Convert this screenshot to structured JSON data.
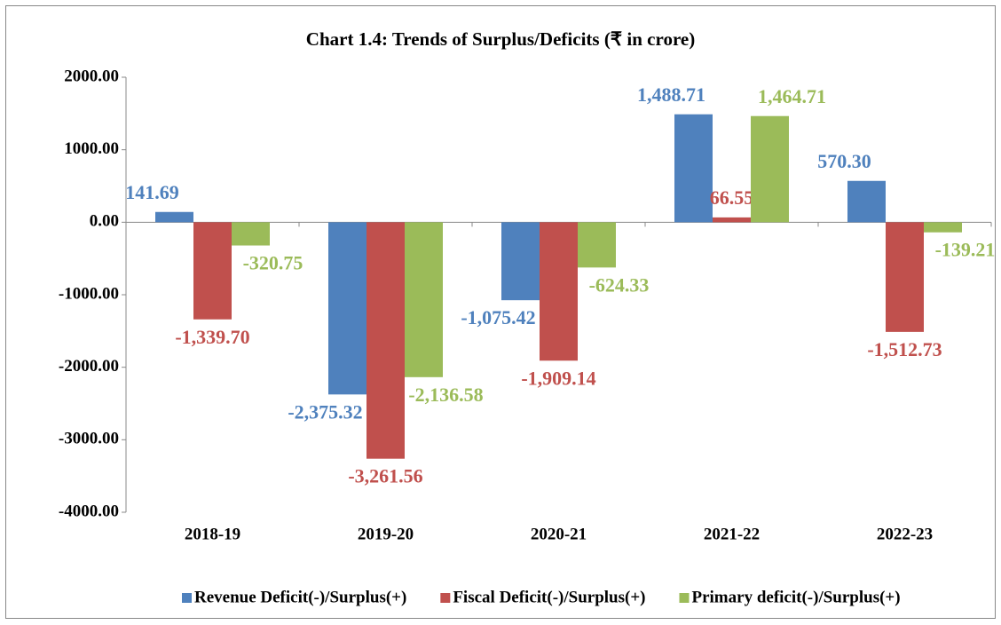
{
  "chart_data": {
    "type": "bar",
    "title": "Chart 1.4: Trends of Surplus/Deficits (₹ in crore)",
    "categories": [
      "2018-19",
      "2019-20",
      "2020-21",
      "2021-22",
      "2022-23"
    ],
    "series": [
      {
        "name": "Revenue Deficit(-)/Surplus(+)",
        "color": "#4f81bd",
        "values": [
          141.69,
          -2375.32,
          -1075.42,
          1488.71,
          570.3
        ],
        "value_labels": [
          "141.69",
          "-2,375.32",
          "-1,075.42",
          "1,488.71",
          "570.30"
        ]
      },
      {
        "name": "Fiscal Deficit(-)/Surplus(+)",
        "color": "#c0504d",
        "values": [
          -1339.7,
          -3261.56,
          -1909.14,
          66.55,
          -1512.73
        ],
        "value_labels": [
          "-1,339.70",
          "-3,261.56",
          "-1,909.14",
          "66.55",
          "-1,512.73"
        ]
      },
      {
        "name": "Primary deficit(-)/Surplus(+)",
        "color": "#9bbb59",
        "values": [
          -320.75,
          -2136.58,
          -624.33,
          1464.71,
          -139.21
        ],
        "value_labels": [
          "-320.75",
          "-2,136.58",
          "-624.33",
          "1,464.71",
          "-139.21"
        ]
      }
    ],
    "ylim": [
      -4000,
      2000
    ],
    "yticks": [
      {
        "value": -4000,
        "label": "-4000.00"
      },
      {
        "value": -3000,
        "label": "-3000.00"
      },
      {
        "value": -2000,
        "label": "-2000.00"
      },
      {
        "value": -1000,
        "label": "-1000.00"
      },
      {
        "value": 0,
        "label": "0.00"
      },
      {
        "value": 1000,
        "label": "1000.00"
      },
      {
        "value": 2000,
        "label": "2000.00"
      }
    ],
    "grid": false,
    "legend": "bottom"
  }
}
